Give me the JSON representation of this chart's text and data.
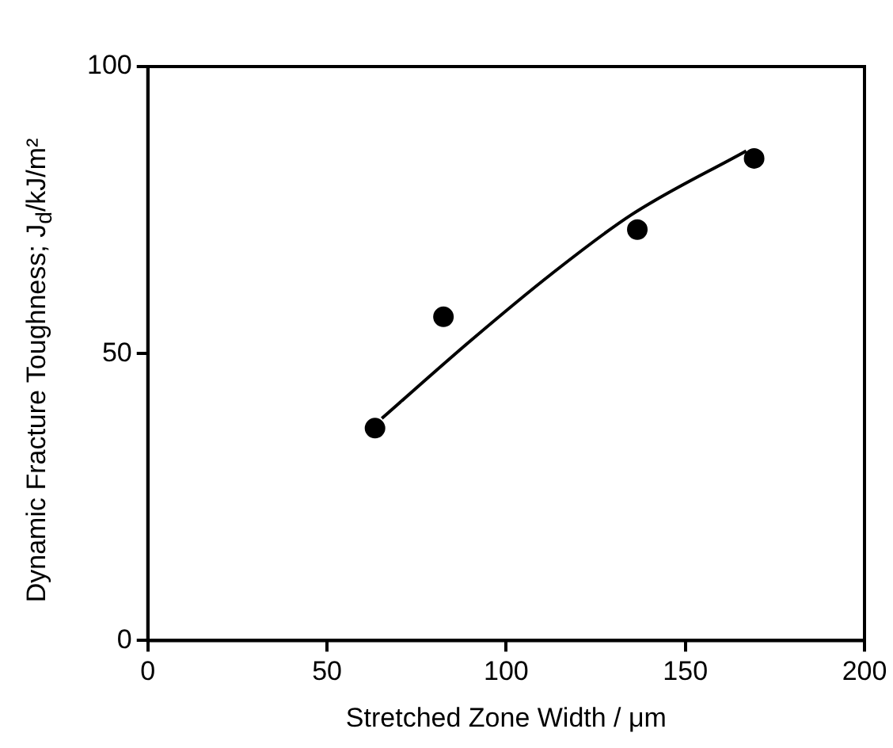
{
  "chart_data": {
    "type": "scatter",
    "xlabel": "Stretched Zone Width / μm",
    "ylabel": "Dynamic Fracture Toughness; J$_{d}$/kJ/m²",
    "xlim": [
      0,
      200
    ],
    "xticks": [
      0,
      50,
      100,
      150,
      200
    ],
    "ylim": [
      0,
      100
    ],
    "yticks": [
      0,
      50,
      100
    ],
    "grid": false,
    "legend": false,
    "marker": "circle",
    "series": [
      {
        "color": "#000000",
        "x": [
          63.4,
          82.5,
          136.6,
          169.2
        ],
        "values": [
          37,
          56.4,
          71.6,
          84
        ]
      },
      {
        "type": "line",
        "color": "#000000",
        "marker": "none",
        "x": [
          65.3,
          90,
          112.5,
          135,
          167
        ],
        "values": [
          38.7,
          52.2,
          63.8,
          74.2,
          85.3
        ]
      }
    ]
  }
}
